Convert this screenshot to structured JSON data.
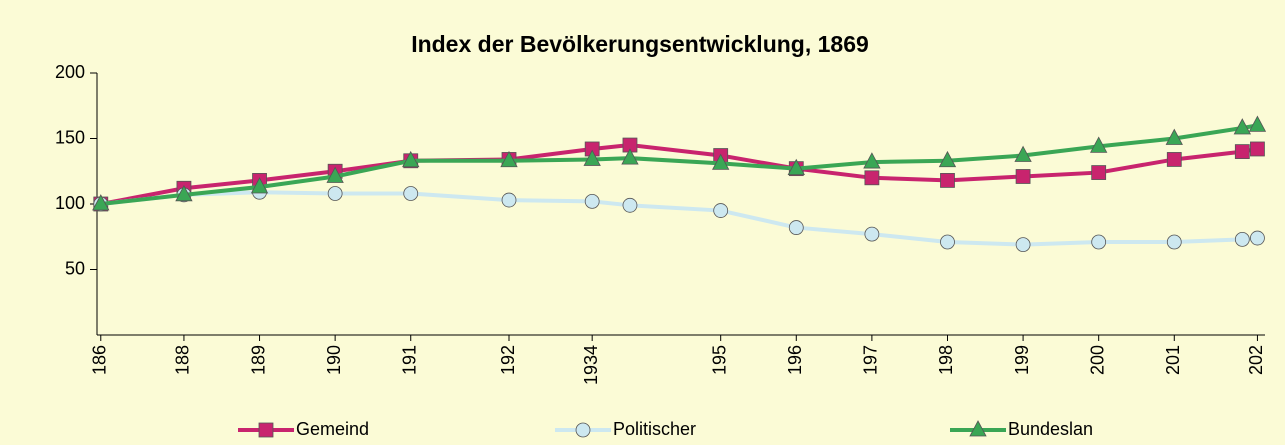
{
  "chart_data": {
    "type": "line",
    "title": "Index der Bevölkerungsentwicklung, 1869",
    "x": [
      1869,
      1880,
      1890,
      1900,
      1910,
      1923,
      1934,
      1939,
      1951,
      1961,
      1971,
      1981,
      1991,
      2001,
      2011,
      2020,
      2022
    ],
    "series": [
      {
        "name": "Gemeind",
        "color": "#c8246e",
        "marker": "square",
        "values": [
          100,
          112,
          118,
          125,
          133,
          134,
          142,
          145,
          137,
          127,
          120,
          118,
          121,
          124,
          134,
          140,
          142
        ]
      },
      {
        "name": "Politischer",
        "color": "#cde8f0",
        "marker": "circle",
        "values": [
          100,
          107,
          109,
          108,
          108,
          103,
          102,
          99,
          95,
          82,
          77,
          71,
          69,
          71,
          71,
          73,
          74
        ]
      },
      {
        "name": "Bundeslan",
        "color": "#3aa655",
        "marker": "triangle",
        "values": [
          100,
          107,
          113,
          121,
          133,
          133,
          134,
          135,
          131,
          127,
          132,
          133,
          137,
          144,
          150,
          158,
          160
        ]
      }
    ],
    "xlim": [
      1868.5,
      2023
    ],
    "xticks": [
      {
        "value": 1869,
        "label": "186"
      },
      {
        "value": 1880,
        "label": "188"
      },
      {
        "value": 1890,
        "label": "189"
      },
      {
        "value": 1900,
        "label": "190"
      },
      {
        "value": 1910,
        "label": "191"
      },
      {
        "value": 1923,
        "label": "192"
      },
      {
        "value": 1934,
        "label": "1934"
      },
      {
        "value": 1951,
        "label": "195"
      },
      {
        "value": 1961,
        "label": "196"
      },
      {
        "value": 1971,
        "label": "197"
      },
      {
        "value": 1981,
        "label": "198"
      },
      {
        "value": 1991,
        "label": "199"
      },
      {
        "value": 2001,
        "label": "200"
      },
      {
        "value": 2011,
        "label": "201"
      },
      {
        "value": 2022,
        "label": "202"
      }
    ],
    "ylim": [
      0,
      200
    ],
    "yticks": [
      50,
      100,
      150,
      200
    ],
    "grid": false,
    "legend": "bottom"
  }
}
